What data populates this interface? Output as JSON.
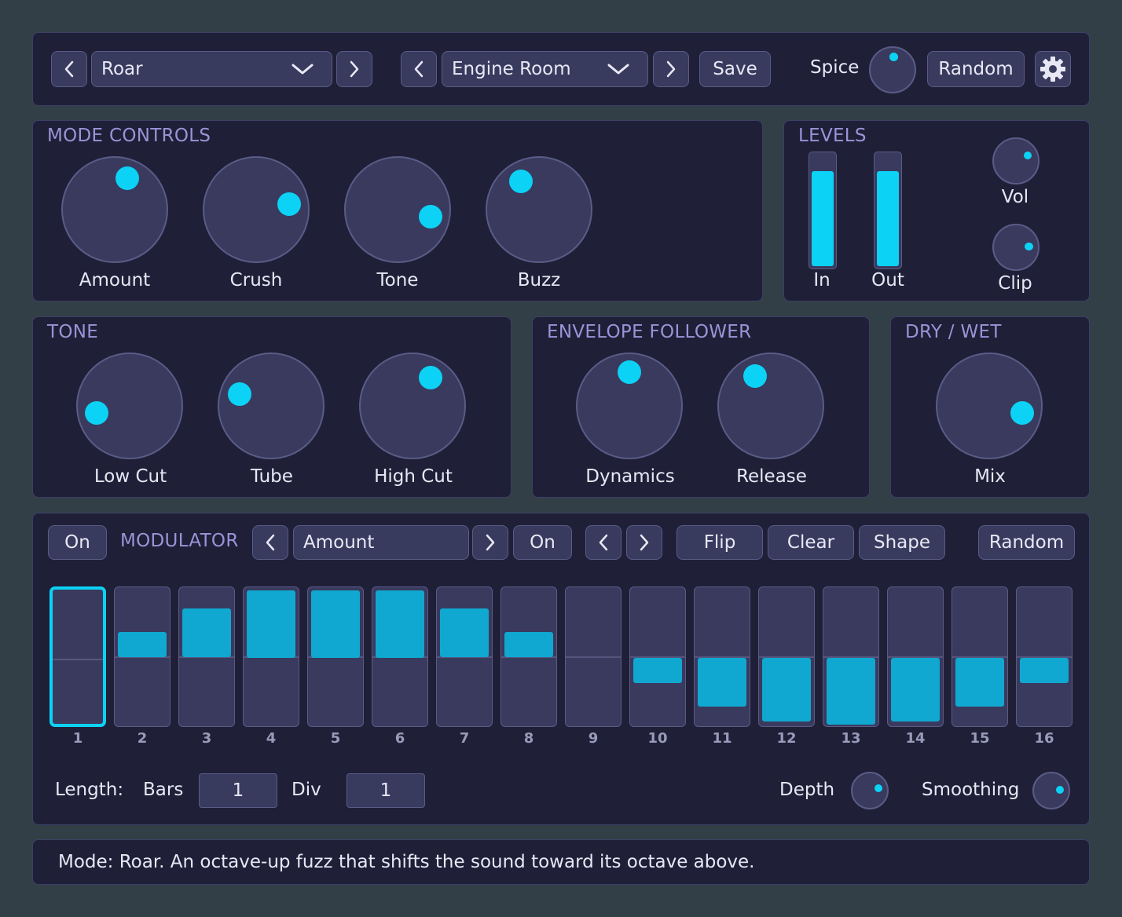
{
  "header": {
    "mode_select": {
      "value": "Roar"
    },
    "preset_select": {
      "value": "Engine Room"
    },
    "save_label": "Save",
    "spice_label": "Spice",
    "spice_value": 0.52,
    "random_label": "Random"
  },
  "mode_controls": {
    "title": "MODE CONTROLS",
    "knobs": [
      {
        "label": "Amount",
        "value": 0.58
      },
      {
        "label": "Crush",
        "value": 0.8
      },
      {
        "label": "Tone",
        "value": 0.88
      },
      {
        "label": "Buzz",
        "value": 0.38
      }
    ]
  },
  "levels": {
    "title": "LEVELS",
    "meters": [
      {
        "label": "In",
        "level": 0.85
      },
      {
        "label": "Out",
        "level": 0.85
      }
    ],
    "knobs": [
      {
        "label": "Vol",
        "value": 0.74
      },
      {
        "label": "Clip",
        "value": 0.82
      }
    ]
  },
  "tone": {
    "title": "TONE",
    "knobs": [
      {
        "label": "Low Cut",
        "value": 0.12
      },
      {
        "label": "Tube",
        "value": 0.24
      },
      {
        "label": "High Cut",
        "value": 0.62
      }
    ]
  },
  "envelope": {
    "title": "ENVELOPE FOLLOWER",
    "knobs": [
      {
        "label": "Dynamics",
        "value": 0.5
      },
      {
        "label": "Release",
        "value": 0.4
      }
    ]
  },
  "drywet": {
    "title": "DRY / WET",
    "knobs": [
      {
        "label": "Mix",
        "value": 0.88
      }
    ]
  },
  "modulator": {
    "on_label": "On",
    "title": "MODULATOR",
    "target_select": {
      "value": "Amount"
    },
    "target_on_label": "On",
    "flip_label": "Flip",
    "clear_label": "Clear",
    "shape_label": "Shape",
    "random_label": "Random",
    "selected_step": 1,
    "steps": [
      {
        "label": "1",
        "value": 0
      },
      {
        "label": "2",
        "value": 0.38
      },
      {
        "label": "3",
        "value": 0.73
      },
      {
        "label": "4",
        "value": 1.0
      },
      {
        "label": "5",
        "value": 1.0
      },
      {
        "label": "6",
        "value": 1.0
      },
      {
        "label": "7",
        "value": 0.73
      },
      {
        "label": "8",
        "value": 0.38
      },
      {
        "label": "9",
        "value": 0
      },
      {
        "label": "10",
        "value": -0.38
      },
      {
        "label": "11",
        "value": -0.73
      },
      {
        "label": "12",
        "value": -0.95
      },
      {
        "label": "13",
        "value": -1.0
      },
      {
        "label": "14",
        "value": -0.95
      },
      {
        "label": "15",
        "value": -0.73
      },
      {
        "label": "16",
        "value": -0.38
      }
    ],
    "length_label": "Length:",
    "bars_label": "Bars",
    "bars_value": "1",
    "div_label": "Div",
    "div_value": "1",
    "depth_label": "Depth",
    "depth_value": 0.78,
    "smoothing_label": "Smoothing",
    "smoothing_value": 0.82
  },
  "status": {
    "text": "Mode: Roar. An octave-up fuzz that shifts the sound toward its octave above."
  },
  "icons": {
    "prev": "chevron-left-icon",
    "next": "chevron-right-icon",
    "dropdown": "chevron-down-icon",
    "settings": "gear-icon"
  },
  "colors": {
    "background": "#323f47",
    "panel": "#1f1f38",
    "accent": "#0cd2f5",
    "step_bar": "#10a8d0",
    "section_title": "#9c93d6"
  }
}
